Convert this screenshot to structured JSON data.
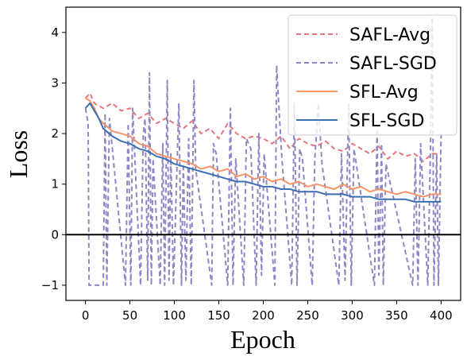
{
  "chart_data": {
    "type": "line",
    "xlabel": "Epoch",
    "ylabel": "Loss",
    "xlim": [
      -22,
      422
    ],
    "ylim": [
      -1.3,
      4.5
    ],
    "xticks": [
      0,
      50,
      100,
      150,
      200,
      250,
      300,
      350,
      400
    ],
    "yticks": [
      -1,
      0,
      1,
      2,
      3,
      4
    ],
    "hline": 0,
    "legend_position": "top-right",
    "series": [
      {
        "name": "SAFL-Avg",
        "color": "#e8747c",
        "style": "dashed",
        "x": [
          0,
          5,
          10,
          20,
          30,
          40,
          50,
          60,
          70,
          80,
          90,
          100,
          110,
          120,
          130,
          140,
          150,
          160,
          170,
          180,
          190,
          200,
          210,
          220,
          230,
          240,
          250,
          260,
          270,
          280,
          290,
          300,
          310,
          320,
          330,
          340,
          350,
          360,
          370,
          380,
          390,
          400
        ],
        "values": [
          2.7,
          2.8,
          2.6,
          2.5,
          2.6,
          2.45,
          2.5,
          2.3,
          2.4,
          2.2,
          2.3,
          2.2,
          2.1,
          2.25,
          2.0,
          2.1,
          1.9,
          2.2,
          2.0,
          1.9,
          1.95,
          1.9,
          1.8,
          1.95,
          1.7,
          1.9,
          1.8,
          1.75,
          1.85,
          1.7,
          1.65,
          1.8,
          1.7,
          1.6,
          1.75,
          1.5,
          1.65,
          1.55,
          1.6,
          1.45,
          1.6,
          1.6
        ]
      },
      {
        "name": "SAFL-SGD",
        "color": "#8f87c4",
        "style": "dashed",
        "x": [
          0,
          3,
          4,
          5,
          6,
          7,
          20,
          22,
          24,
          27,
          45,
          48,
          51,
          53,
          62,
          65,
          67,
          70,
          72,
          74,
          76,
          84,
          87,
          89,
          92,
          94,
          96,
          99,
          105,
          108,
          110,
          113,
          116,
          119,
          122,
          124,
          142,
          144,
          147,
          160,
          163,
          166,
          169,
          178,
          181,
          186,
          192,
          195,
          198,
          201,
          213,
          215,
          218,
          221,
          232,
          235,
          238,
          241,
          244,
          255,
          258,
          262,
          266,
          285,
          288,
          292,
          296,
          299,
          302,
          325,
          328,
          330,
          333,
          335,
          338,
          368,
          371,
          374,
          377,
          385,
          388,
          390,
          392,
          395,
          397,
          400
        ],
        "values": [
          2.5,
          2.2,
          -1.0,
          -1.0,
          -1.0,
          -1.0,
          -1.0,
          2.4,
          -1.0,
          2.3,
          -1.0,
          2.2,
          -1.0,
          2.5,
          -1.0,
          2.0,
          2.3,
          -0.9,
          3.2,
          -1.0,
          1.5,
          -1.0,
          1.8,
          -1.0,
          3.05,
          -0.9,
          1.6,
          -1.0,
          2.6,
          -1.0,
          1.4,
          -0.9,
          1.9,
          -1.0,
          3.05,
          1.3,
          -1.0,
          1.8,
          1.6,
          -1.0,
          2.5,
          -1.0,
          1.5,
          -1.0,
          1.9,
          1.7,
          -1.0,
          2.0,
          -0.8,
          1.6,
          -1.0,
          3.35,
          2.4,
          1.5,
          -1.0,
          2.6,
          -1.0,
          1.7,
          1.5,
          -1.0,
          1.5,
          2.6,
          1.4,
          -1.0,
          1.6,
          -0.9,
          2.6,
          -1.0,
          1.7,
          -1.0,
          2.1,
          -0.8,
          1.8,
          -1.0,
          1.4,
          -1.0,
          1.5,
          -1.0,
          1.8,
          -1.0,
          1.6,
          4.3,
          -1.0,
          1.6,
          -1.0,
          2.0
        ]
      },
      {
        "name": "SFL-Avg",
        "color": "#f59468",
        "style": "solid",
        "x": [
          0,
          5,
          10,
          15,
          20,
          30,
          40,
          50,
          60,
          70,
          80,
          90,
          100,
          110,
          120,
          130,
          140,
          150,
          160,
          170,
          180,
          190,
          200,
          210,
          220,
          230,
          240,
          250,
          260,
          270,
          280,
          290,
          300,
          310,
          320,
          330,
          340,
          350,
          360,
          370,
          380,
          390,
          400
        ],
        "values": [
          2.7,
          2.65,
          2.5,
          2.3,
          2.2,
          2.05,
          2.0,
          1.95,
          1.8,
          1.75,
          1.6,
          1.55,
          1.5,
          1.45,
          1.4,
          1.3,
          1.35,
          1.25,
          1.3,
          1.15,
          1.2,
          1.1,
          1.15,
          1.05,
          1.1,
          1.0,
          1.05,
          0.95,
          1.0,
          0.95,
          0.9,
          1.0,
          0.9,
          0.95,
          0.85,
          0.9,
          0.85,
          0.8,
          0.85,
          0.8,
          0.75,
          0.8,
          0.8
        ]
      },
      {
        "name": "SFL-SGD",
        "color": "#3b6fb4",
        "style": "solid",
        "x": [
          0,
          5,
          10,
          15,
          20,
          30,
          40,
          50,
          60,
          70,
          80,
          90,
          100,
          110,
          120,
          130,
          140,
          150,
          160,
          170,
          180,
          190,
          200,
          210,
          220,
          230,
          240,
          250,
          260,
          270,
          280,
          290,
          300,
          310,
          320,
          330,
          340,
          350,
          360,
          370,
          380,
          390,
          400
        ],
        "values": [
          2.5,
          2.6,
          2.45,
          2.3,
          2.1,
          1.95,
          1.85,
          1.8,
          1.7,
          1.65,
          1.55,
          1.5,
          1.4,
          1.35,
          1.3,
          1.25,
          1.2,
          1.15,
          1.1,
          1.05,
          1.05,
          1.0,
          0.95,
          0.95,
          0.9,
          0.9,
          0.85,
          0.85,
          0.85,
          0.8,
          0.8,
          0.8,
          0.75,
          0.75,
          0.75,
          0.7,
          0.7,
          0.7,
          0.7,
          0.65,
          0.65,
          0.65,
          0.65
        ]
      }
    ]
  }
}
